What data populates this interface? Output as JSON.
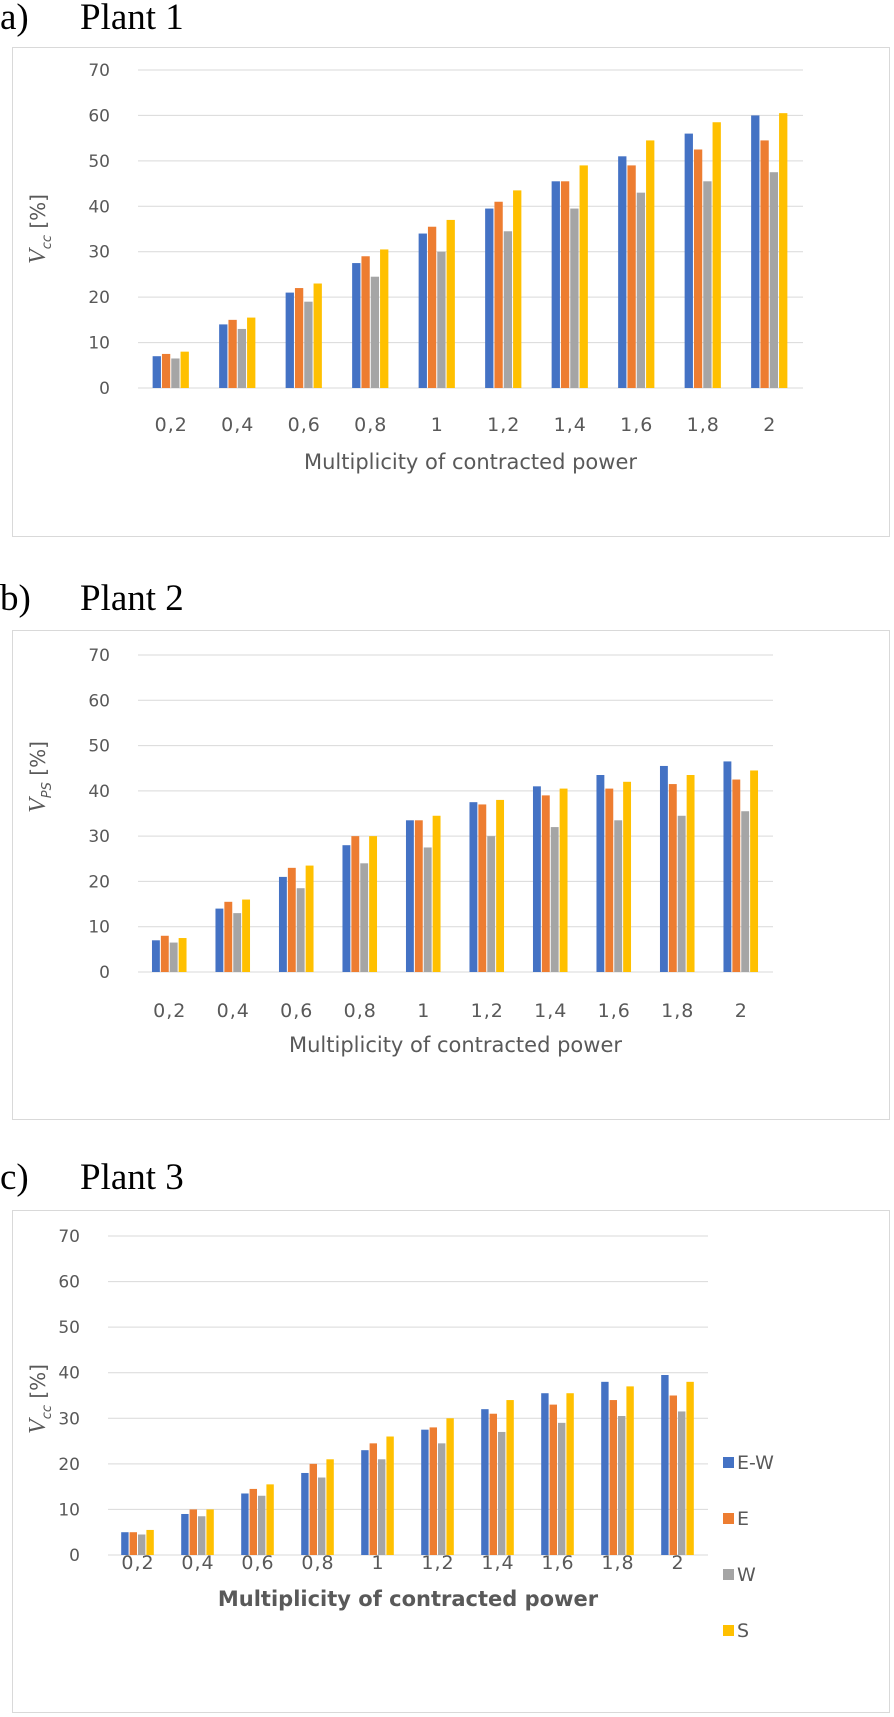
{
  "panels": [
    {
      "letter": "a)",
      "heading": "Plant 1",
      "chart_data": {
        "type": "bar",
        "title": "",
        "xlabel": "Multiplicity of contracted power",
        "ylabel": "V_cc [%]",
        "ylabel_main": "V",
        "ylabel_sub": "cc",
        "ylabel_unit": " [%]",
        "ylim": [
          0,
          70
        ],
        "yticks": [
          "0",
          "10",
          "20",
          "30",
          "40",
          "50",
          "60",
          "70"
        ],
        "grid": true,
        "categories": [
          "0,2",
          "0,4",
          "0,6",
          "0,8",
          "1",
          "1,2",
          "1,4",
          "1,6",
          "1,8",
          "2"
        ],
        "series": [
          {
            "name": "E-W",
            "color": "#4472c4",
            "values": [
              7,
              14,
              21,
              27.5,
              34,
              39.5,
              45.5,
              51,
              56,
              60
            ]
          },
          {
            "name": "E",
            "color": "#ed7d31",
            "values": [
              7.5,
              15,
              22,
              29,
              35.5,
              41,
              45.5,
              49,
              52.5,
              54.5
            ]
          },
          {
            "name": "W",
            "color": "#a5a5a5",
            "values": [
              6.5,
              13,
              19,
              24.5,
              30,
              34.5,
              39.5,
              43,
              45.5,
              47.5
            ]
          },
          {
            "name": "S",
            "color": "#ffc000",
            "values": [
              8,
              15.5,
              23,
              30.5,
              37,
              43.5,
              49,
              54.5,
              58.5,
              60.5
            ]
          }
        ],
        "legend": false
      }
    },
    {
      "letter": "b)",
      "heading": "Plant 2",
      "chart_data": {
        "type": "bar",
        "title": "",
        "xlabel": "Multiplicity of contracted power",
        "ylabel": "V_PS [%]",
        "ylabel_main": "V",
        "ylabel_sub": "PS",
        "ylabel_unit": " [%]",
        "ylim": [
          0,
          70
        ],
        "yticks": [
          "0",
          "10",
          "20",
          "30",
          "40",
          "50",
          "60",
          "70"
        ],
        "grid": true,
        "categories": [
          "0,2",
          "0,4",
          "0,6",
          "0,8",
          "1",
          "1,2",
          "1,4",
          "1,6",
          "1,8",
          "2"
        ],
        "series": [
          {
            "name": "E-W",
            "color": "#4472c4",
            "values": [
              7,
              14,
              21,
              28,
              33.5,
              37.5,
              41,
              43.5,
              45.5,
              46.5
            ]
          },
          {
            "name": "E",
            "color": "#ed7d31",
            "values": [
              8,
              15.5,
              23,
              30,
              33.5,
              37,
              39,
              40.5,
              41.5,
              42.5
            ]
          },
          {
            "name": "W",
            "color": "#a5a5a5",
            "values": [
              6.5,
              13,
              18.5,
              24,
              27.5,
              30,
              32,
              33.5,
              34.5,
              35.5
            ]
          },
          {
            "name": "S",
            "color": "#ffc000",
            "values": [
              7.5,
              16,
              23.5,
              30,
              34.5,
              38,
              40.5,
              42,
              43.5,
              44.5
            ]
          }
        ],
        "legend": false
      }
    },
    {
      "letter": "c)",
      "heading": "Plant 3",
      "chart_data": {
        "type": "bar",
        "title": "",
        "xlabel": "Multiplicity of contracted power",
        "ylabel": "V_cc [%]",
        "ylabel_main": "V",
        "ylabel_sub": "cc",
        "ylabel_unit": " [%]",
        "ylim": [
          0,
          70
        ],
        "yticks": [
          "0",
          "10",
          "20",
          "30",
          "40",
          "50",
          "60",
          "70"
        ],
        "grid": true,
        "categories": [
          "0,2",
          "0,4",
          "0,6",
          "0,8",
          "1",
          "1,2",
          "1,4",
          "1,6",
          "1,8",
          "2"
        ],
        "series": [
          {
            "name": "E-W",
            "color": "#4472c4",
            "values": [
              5,
              9,
              13.5,
              18,
              23,
              27.5,
              32,
              35.5,
              38,
              39.5
            ]
          },
          {
            "name": "E",
            "color": "#ed7d31",
            "values": [
              5,
              10,
              14.5,
              20,
              24.5,
              28,
              31,
              33,
              34,
              35
            ]
          },
          {
            "name": "W",
            "color": "#a5a5a5",
            "values": [
              4.5,
              8.5,
              13,
              17,
              21,
              24.5,
              27,
              29,
              30.5,
              31.5
            ]
          },
          {
            "name": "S",
            "color": "#ffc000",
            "values": [
              5.5,
              10,
              15.5,
              21,
              26,
              30,
              34,
              35.5,
              37,
              38
            ]
          }
        ],
        "legend": true,
        "legend_position": "right"
      }
    }
  ]
}
